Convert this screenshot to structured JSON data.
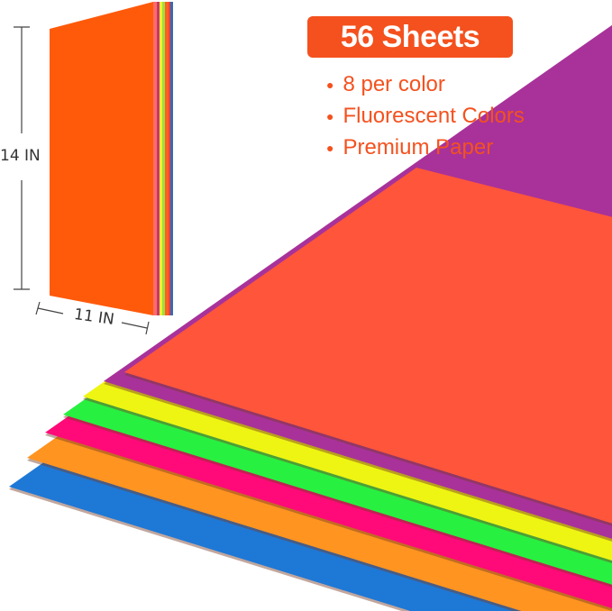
{
  "badge": {
    "label": "56 Sheets",
    "color": "#f4511e"
  },
  "features": [
    "8 per color",
    "Fluorescent Colors",
    "Premium Paper"
  ],
  "dimensions": {
    "height": "14 IN",
    "width": "11 IN"
  },
  "sheet_colors": [
    "#1e78d6",
    "#ff9420",
    "#ff0a78",
    "#28f040",
    "#eef512",
    "#a8329a",
    "#ff553a"
  ],
  "stack_face_color": "#ff5a0a"
}
